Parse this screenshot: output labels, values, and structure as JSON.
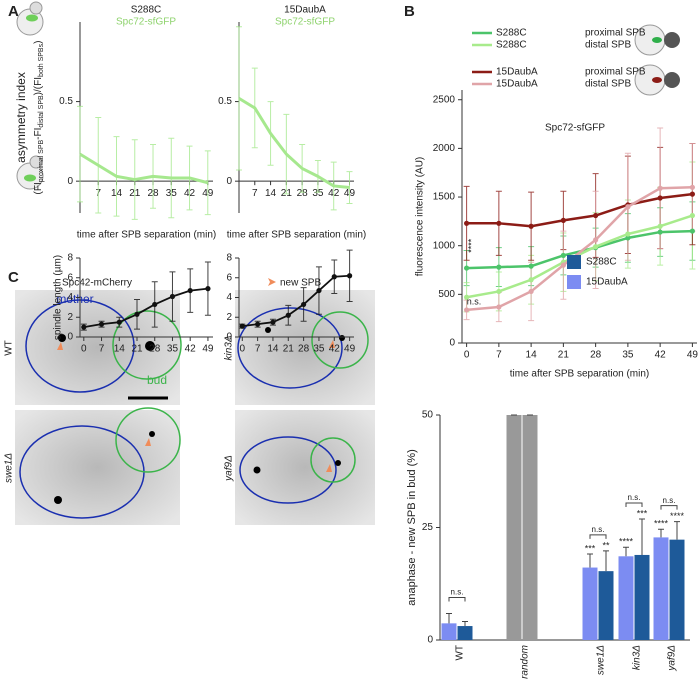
{
  "panel_labels": [
    "A",
    "B",
    "C"
  ],
  "images": {
    "title": "Spc42-mCherry",
    "arrow_legend": "new SPB",
    "mother": "mother",
    "bud": "bud",
    "strains": [
      "WT",
      "swe1Δ",
      "kin3Δ",
      "yaf9Δ"
    ]
  },
  "chart_data": [
    {
      "type": "line",
      "title": "S288C",
      "subtitle": "Spc72-sfGFP",
      "y_label": "asymmetry index",
      "y_label_formula": [
        "(FI",
        "proximal SPB",
        "-FI",
        "distal SPB",
        ")/(FI",
        "both SPBs",
        ")"
      ],
      "x_label": "time after SPB separation (min)",
      "x": [
        0,
        7,
        14,
        21,
        28,
        35,
        42,
        49
      ],
      "values": [
        0.17,
        0.1,
        0.03,
        0.01,
        0.03,
        0.02,
        0.02,
        -0.01
      ],
      "errors": [
        0.3,
        0.3,
        0.25,
        0.25,
        0.2,
        0.25,
        0.2,
        0.2
      ],
      "color": "#a6e88e",
      "markers": false,
      "xlim": [
        0,
        51
      ],
      "ylim": [
        -0.2,
        1.0
      ],
      "xticks": [
        7,
        14,
        21,
        28,
        35,
        42,
        49
      ],
      "yticks": [
        0,
        0.5
      ]
    },
    {
      "type": "line",
      "title": "15DaubA",
      "subtitle": "Spc72-sfGFP",
      "x_label": "time after SPB separation (min)",
      "x": [
        0,
        7,
        14,
        21,
        28,
        35,
        42,
        49
      ],
      "values": [
        0.52,
        0.46,
        0.3,
        0.17,
        0.08,
        0.03,
        -0.03,
        -0.04
      ],
      "errors": [
        0.45,
        0.25,
        0.2,
        0.25,
        0.15,
        0.1,
        0.15,
        0.1
      ],
      "color": "#a6e88e",
      "markers": false,
      "xlim": [
        0,
        51
      ],
      "ylim": [
        -0.2,
        1.0
      ],
      "xticks": [
        7,
        14,
        21,
        28,
        35,
        42,
        49
      ],
      "yticks": [
        0,
        0.5
      ]
    },
    {
      "type": "line",
      "y_label": "spindle length (µm)",
      "x": [
        0,
        7,
        14,
        21,
        28,
        35,
        42,
        49
      ],
      "values": [
        1.0,
        1.3,
        1.5,
        2.3,
        3.3,
        4.1,
        4.7,
        4.9
      ],
      "errors": [
        0.3,
        0.3,
        0.5,
        1.5,
        2.3,
        2.5,
        2.2,
        2.7
      ],
      "color": "#111111",
      "markers": true,
      "xlim": [
        -1.5,
        51
      ],
      "ylim": [
        0,
        8
      ],
      "xticks": [
        0,
        7,
        14,
        21,
        28,
        35,
        42,
        49
      ],
      "yticks": [
        0,
        2,
        4,
        6,
        8
      ]
    },
    {
      "type": "line",
      "x": [
        0,
        7,
        14,
        21,
        28,
        35,
        42,
        49
      ],
      "values": [
        1.1,
        1.3,
        1.5,
        2.2,
        3.3,
        4.7,
        6.1,
        6.2
      ],
      "errors": [
        0.2,
        0.3,
        0.3,
        1.0,
        1.7,
        2.4,
        1.7,
        2.6
      ],
      "color": "#111111",
      "markers": true,
      "xlim": [
        -1.5,
        51
      ],
      "ylim": [
        0,
        8
      ],
      "xticks": [
        0,
        7,
        14,
        21,
        28,
        35,
        42,
        49
      ],
      "yticks": [
        0,
        2,
        4,
        6,
        8
      ]
    },
    {
      "type": "line",
      "subtitle": "Spc72-sfGFP",
      "y_label": "fluorescence intensity (AU)",
      "x_label": "time after SPB separation (min)",
      "annotations": [
        "****",
        "n.s."
      ],
      "x": [
        0,
        7,
        14,
        21,
        28,
        35,
        42,
        49
      ],
      "series": [
        {
          "name": "S288C",
          "location": "proximal SPB",
          "color": "#4cc46a",
          "values": [
            770,
            780,
            790,
            900,
            980,
            1080,
            1140,
            1150
          ],
          "errors": [
            180,
            200,
            200,
            200,
            200,
            250,
            250,
            300
          ]
        },
        {
          "name": "S288C",
          "location": "distal SPB",
          "color": "#a8eb8c",
          "values": [
            470,
            530,
            650,
            830,
            990,
            1120,
            1200,
            1310
          ],
          "errors": [
            150,
            200,
            250,
            300,
            350,
            350,
            400,
            550
          ]
        },
        {
          "name": "15DaubA",
          "location": "proximal SPB",
          "color": "#8c1c16",
          "values": [
            1230,
            1230,
            1200,
            1260,
            1310,
            1420,
            1490,
            1530
          ],
          "errors": [
            380,
            330,
            350,
            300,
            430,
            500,
            520,
            520
          ]
        },
        {
          "name": "15DaubA",
          "location": "distal SPB",
          "color": "#e0a4a8",
          "values": [
            340,
            370,
            530,
            800,
            1060,
            1400,
            1590,
            1600
          ],
          "errors": [
            100,
            150,
            300,
            350,
            500,
            550,
            620,
            450
          ]
        }
      ],
      "markers": true,
      "xlim": [
        -1,
        50
      ],
      "ylim": [
        0,
        2600
      ],
      "xticks": [
        0,
        7,
        14,
        21,
        28,
        35,
        42,
        49
      ],
      "yticks": [
        0,
        500,
        1000,
        1500,
        2000,
        2500
      ]
    },
    {
      "type": "bar",
      "y_label": "anaphase - new SPB in bud (%)",
      "categories": [
        "WT",
        "random",
        "swe1Δ",
        "kin3Δ",
        "yaf9Δ"
      ],
      "category_italic": [
        false,
        true,
        true,
        true,
        true
      ],
      "series": [
        {
          "name": "S288C",
          "color": "#1e5a99",
          "values": [
            3.1,
            50,
            15.3,
            18.9,
            22.3
          ],
          "errors": [
            1.0,
            0,
            4.5,
            8.0,
            4.0
          ],
          "bar_colors": [
            "#1e5a99",
            "#999999",
            "#1e5a99",
            "#1e5a99",
            "#1e5a99"
          ],
          "stars": [
            null,
            null,
            "**",
            "***",
            "****"
          ]
        },
        {
          "name": "15DaubA",
          "color": "#7c8cf2",
          "values": [
            3.7,
            50,
            16.1,
            18.6,
            22.8
          ],
          "errors": [
            2.2,
            0,
            3.0,
            2.0,
            1.8
          ],
          "bar_colors": [
            "#7c8cf2",
            "#999999",
            "#7c8cf2",
            "#7c8cf2",
            "#7c8cf2"
          ],
          "stars": [
            null,
            null,
            "***",
            "****",
            "****"
          ]
        }
      ],
      "brackets": [
        "n.s.",
        null,
        "n.s.",
        "n.s.",
        "n.s."
      ],
      "ylim": [
        0,
        50
      ],
      "yticks": [
        0,
        25,
        50
      ]
    }
  ]
}
